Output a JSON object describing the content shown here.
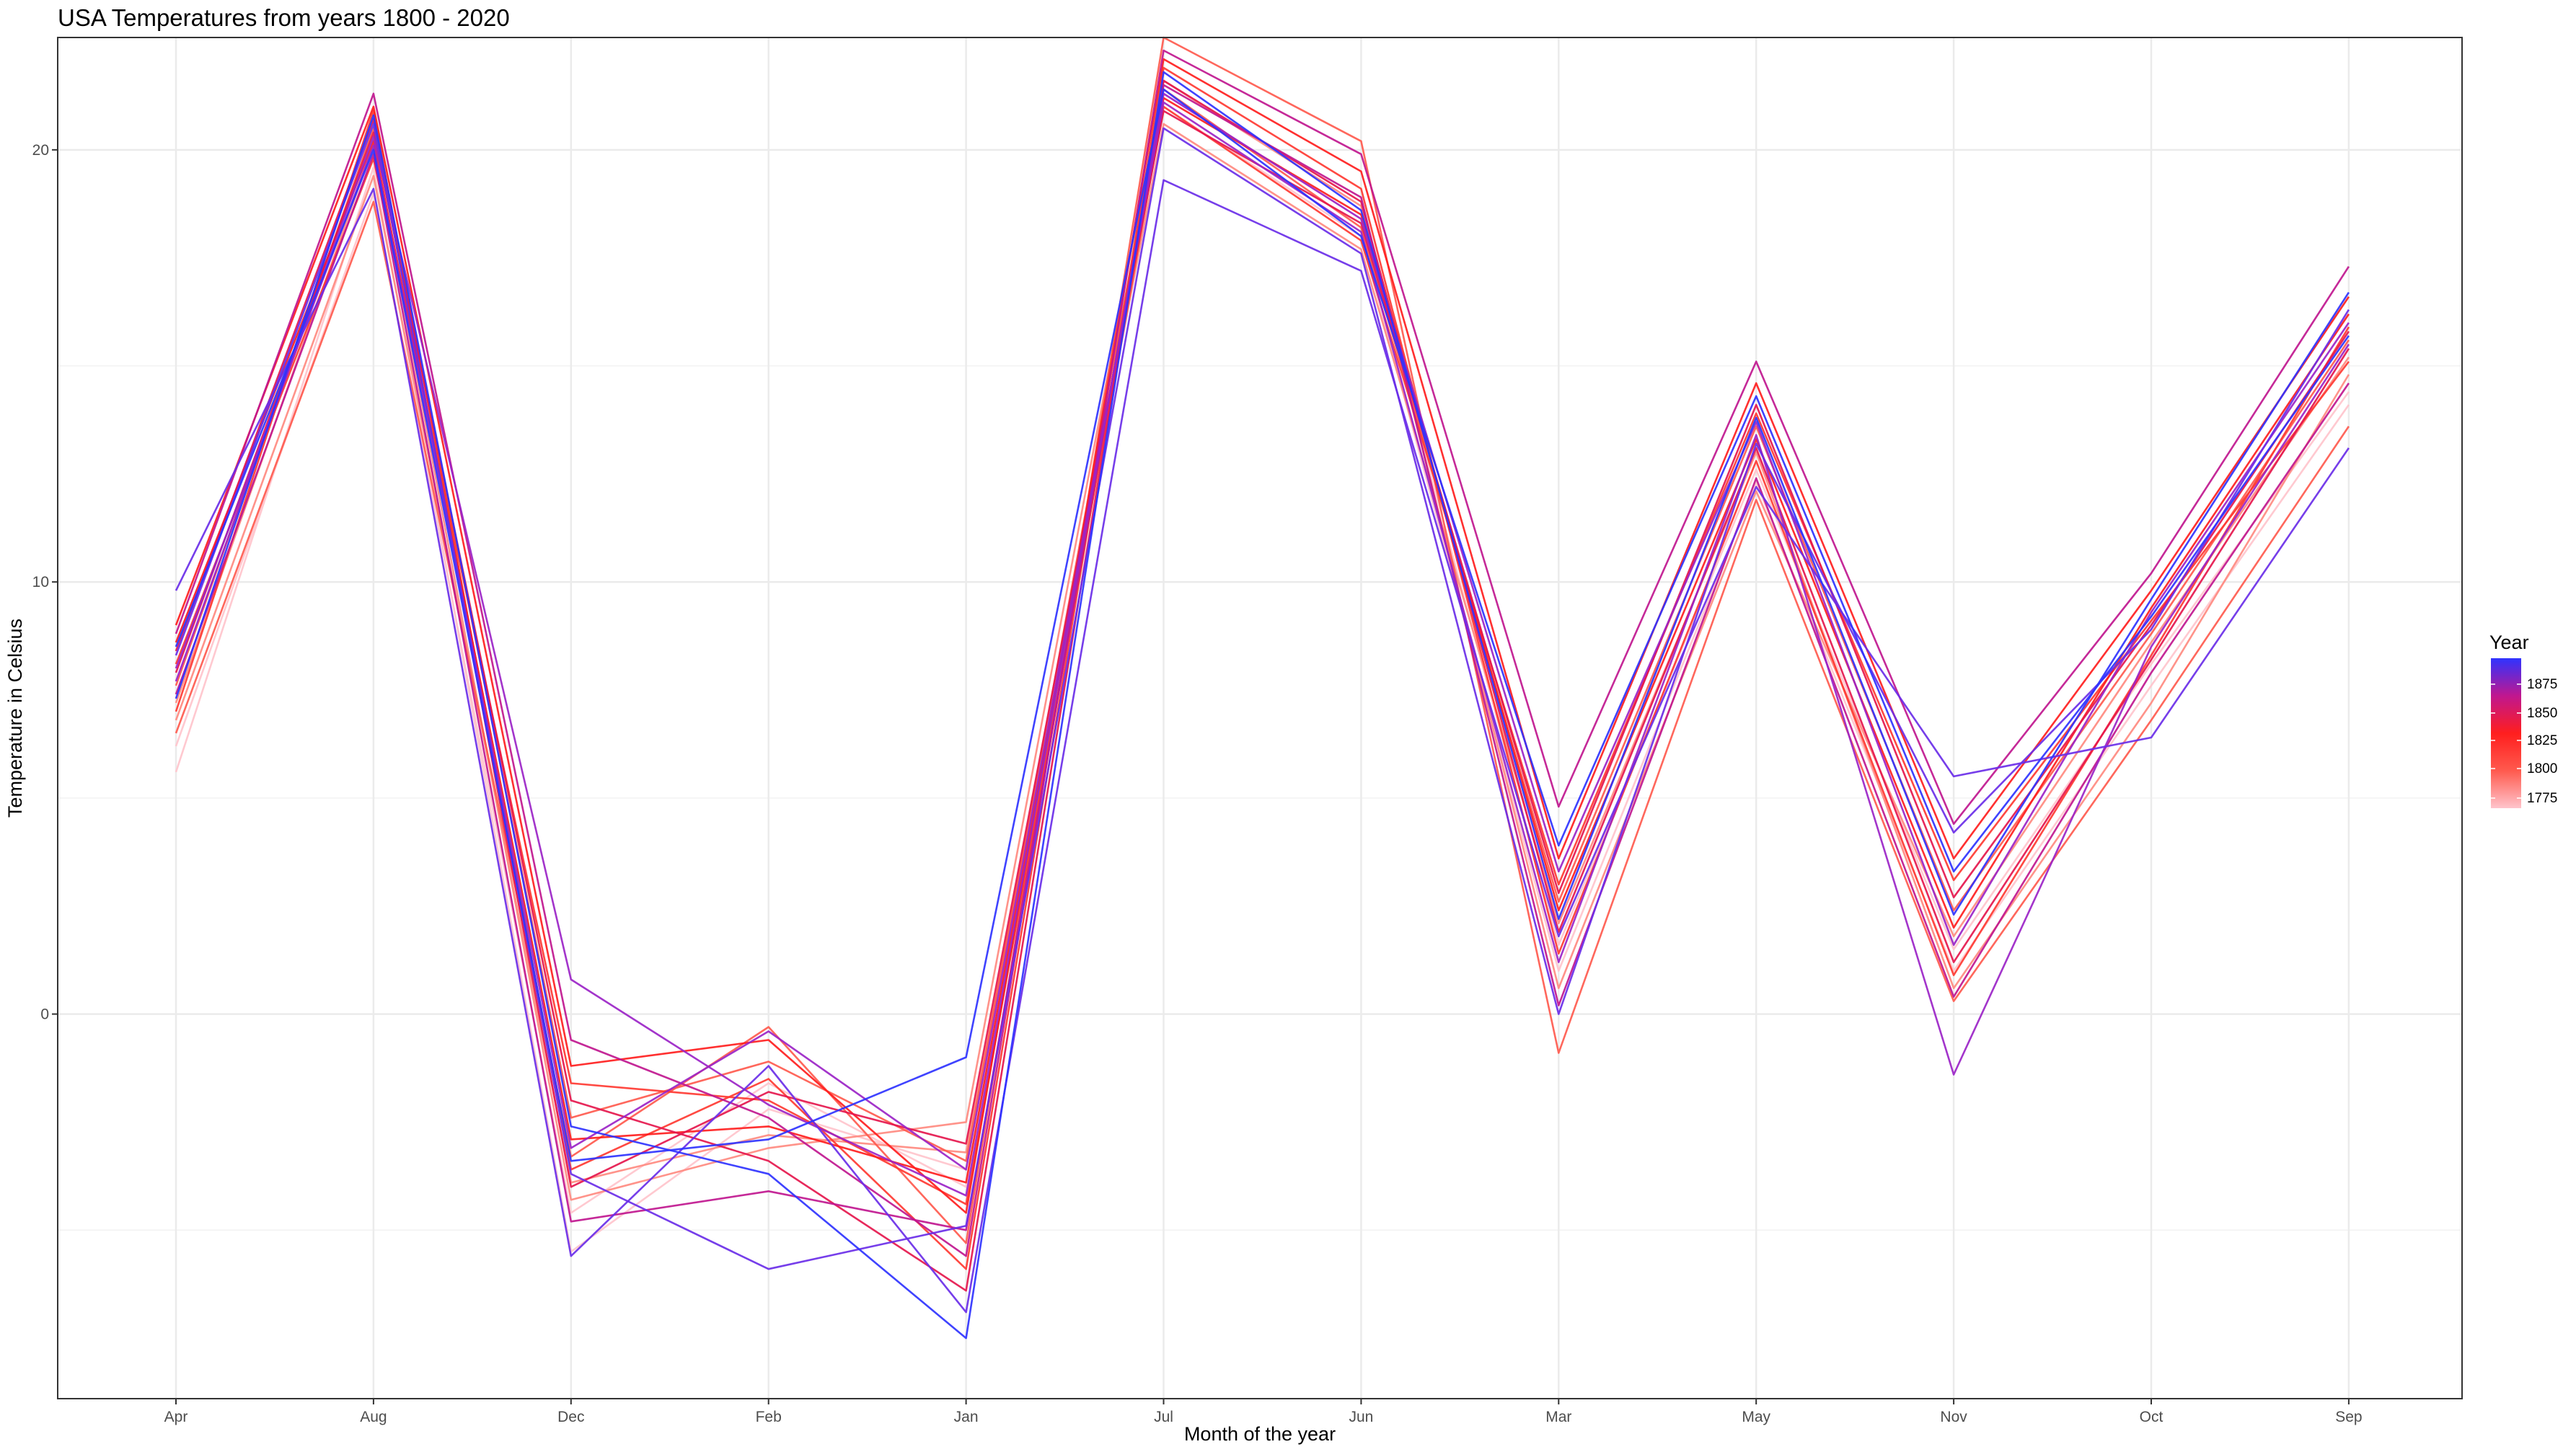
{
  "chart_data": {
    "type": "line",
    "title": "USA Temperatures from years 1800 - 2020",
    "xlabel": "Month of the year",
    "ylabel": "Temperature in Celsius",
    "categories": [
      "Apr",
      "Aug",
      "Dec",
      "Feb",
      "Jan",
      "Jul",
      "Jun",
      "Mar",
      "May",
      "Nov",
      "Oct",
      "Sep"
    ],
    "ylim": [
      -8.9,
      22.6
    ],
    "y_ticks": [
      0,
      10,
      20
    ],
    "grid": true,
    "legend": {
      "title": "Year",
      "placement": "right",
      "labels": [
        "1875",
        "1850",
        "1825",
        "1800",
        "1775"
      ],
      "colors": [
        "#2f33ff",
        "#c0178f",
        "#ff1e1e",
        "#ff5a4e",
        "#ffc4cc"
      ]
    },
    "series": [
      {
        "values": [
          5.6,
          19.6,
          -5.5,
          -2.2,
          -3.6,
          21.0,
          18.0,
          1.0,
          12.3,
          1.0,
          7.6,
          14.1
        ]
      },
      {
        "values": [
          6.2,
          19.0,
          -4.6,
          -1.6,
          -4.0,
          21.3,
          18.4,
          1.6,
          12.6,
          1.5,
          8.1,
          14.4
        ]
      },
      {
        "values": [
          6.8,
          19.4,
          -3.9,
          -2.8,
          -3.2,
          20.6,
          17.7,
          2.1,
          13.0,
          0.6,
          7.2,
          14.8
        ]
      },
      {
        "values": [
          7.2,
          20.1,
          -4.3,
          -3.1,
          -2.5,
          21.6,
          18.7,
          0.6,
          12.1,
          1.8,
          8.6,
          15.2
        ]
      },
      {
        "values": [
          6.5,
          18.8,
          -3.3,
          -0.3,
          -5.3,
          22.6,
          20.2,
          -0.9,
          11.9,
          0.3,
          6.8,
          13.6
        ]
      },
      {
        "values": [
          7.6,
          20.5,
          -2.4,
          -1.1,
          -3.4,
          21.4,
          18.2,
          2.6,
          13.6,
          2.4,
          8.8,
          15.6
        ]
      },
      {
        "values": [
          8.1,
          19.8,
          -1.6,
          -2.0,
          -4.4,
          21.0,
          17.9,
          3.0,
          13.9,
          3.1,
          9.1,
          15.1
        ]
      },
      {
        "values": [
          7.0,
          20.9,
          -3.6,
          -1.5,
          -5.9,
          21.9,
          19.1,
          1.4,
          12.8,
          0.9,
          8.3,
          15.9
        ]
      },
      {
        "values": [
          8.6,
          20.2,
          -2.9,
          -2.6,
          -3.9,
          21.2,
          18.5,
          2.4,
          13.3,
          2.0,
          9.4,
          16.2
        ]
      },
      {
        "values": [
          9.0,
          21.0,
          -1.2,
          -0.6,
          -4.6,
          22.1,
          19.5,
          3.6,
          14.6,
          3.6,
          9.8,
          16.6
        ]
      },
      {
        "values": [
          7.9,
          20.4,
          -2.0,
          -3.4,
          -6.4,
          21.6,
          18.8,
          1.9,
          13.1,
          1.2,
          8.2,
          15.4
        ]
      },
      {
        "values": [
          8.4,
          20.7,
          -4.0,
          -1.8,
          -3.0,
          20.9,
          18.3,
          2.8,
          14.1,
          2.7,
          9.0,
          15.8
        ]
      },
      {
        "values": [
          7.4,
          19.9,
          -4.8,
          -4.1,
          -5.0,
          21.5,
          18.9,
          0.2,
          12.4,
          0.4,
          7.9,
          14.6
        ]
      },
      {
        "values": [
          8.8,
          21.3,
          -0.6,
          -2.4,
          -5.6,
          22.3,
          19.9,
          4.8,
          15.1,
          4.4,
          10.2,
          17.3
        ]
      },
      {
        "values": [
          8.0,
          20.1,
          -3.1,
          -0.4,
          -3.6,
          21.1,
          18.1,
          1.2,
          13.4,
          -1.4,
          8.5,
          15.5
        ]
      },
      {
        "values": [
          7.7,
          20.3,
          0.8,
          -2.1,
          -4.2,
          21.3,
          18.4,
          3.3,
          13.7,
          1.6,
          9.3,
          16.0
        ]
      },
      {
        "values": [
          8.3,
          20.6,
          -3.7,
          -5.9,
          -4.9,
          20.5,
          17.6,
          0.0,
          13.2,
          4.2,
          8.9,
          16.3
        ]
      },
      {
        "values": [
          9.8,
          19.1,
          -5.6,
          -1.2,
          -6.9,
          19.3,
          17.2,
          1.8,
          12.2,
          5.5,
          6.4,
          13.1
        ]
      },
      {
        "values": [
          7.3,
          20.8,
          -2.6,
          -3.7,
          -7.5,
          21.8,
          18.6,
          2.2,
          13.8,
          2.3,
          9.6,
          16.7
        ]
      },
      {
        "values": [
          8.5,
          20.0,
          -3.4,
          -2.9,
          -1.0,
          21.4,
          18.0,
          3.9,
          14.3,
          3.3,
          9.2,
          15.7
        ]
      }
    ]
  }
}
